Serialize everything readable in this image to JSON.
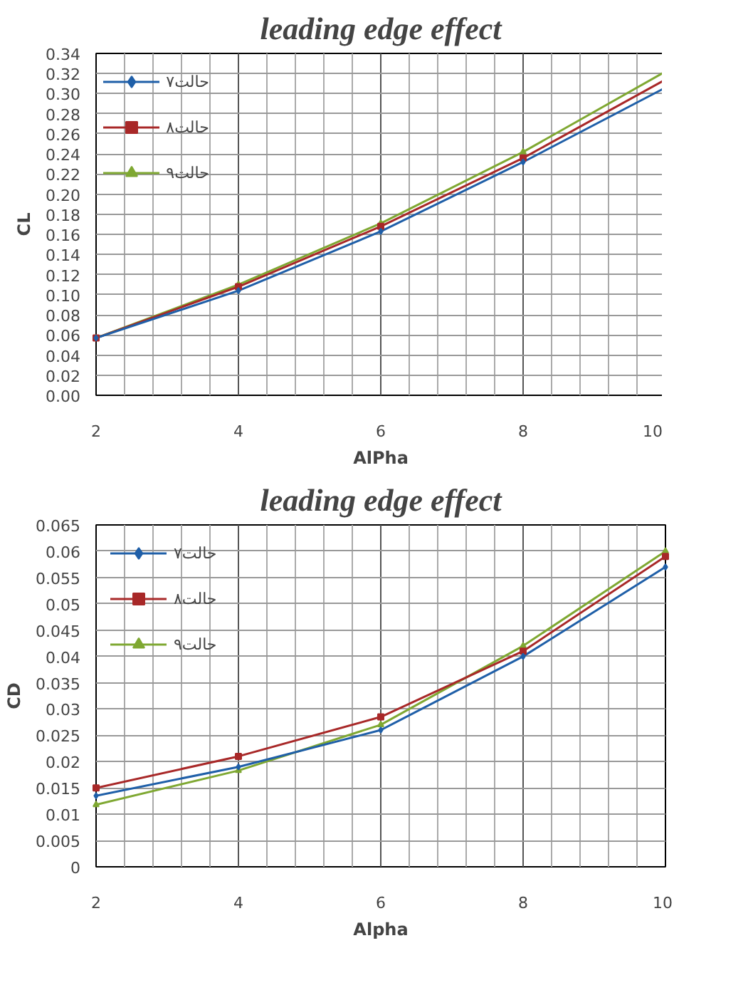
{
  "chart_data": [
    {
      "type": "line",
      "title": "leading edge effect",
      "xlabel": "AlPha",
      "ylabel": "CL",
      "x": [
        2,
        4,
        6,
        8,
        10
      ],
      "series": [
        {
          "name": "حالت۷",
          "color": "#1f5fa8",
          "marker": "diamond",
          "values": [
            0.057,
            0.104,
            0.163,
            0.232,
            0.306
          ]
        },
        {
          "name": "حالت۸",
          "color": "#a82828",
          "marker": "square",
          "values": [
            0.057,
            0.108,
            0.168,
            0.236,
            0.314
          ]
        },
        {
          "name": "حالت۹",
          "color": "#7fa832",
          "marker": "triangle",
          "values": [
            0.057,
            0.11,
            0.171,
            0.242,
            0.322
          ]
        }
      ],
      "xlim": [
        2,
        10
      ],
      "xticks": [
        2,
        4,
        6,
        8,
        10
      ],
      "ylim": [
        0,
        0.34
      ],
      "yticks": [
        {
          "value": 0,
          "label": "0.00"
        },
        {
          "value": 0.02,
          "label": "0.02"
        },
        {
          "value": 0.04,
          "label": "0.04"
        },
        {
          "value": 0.06,
          "label": "0.06"
        },
        {
          "value": 0.08,
          "label": "0.08"
        },
        {
          "value": 0.1,
          "label": "0.10"
        },
        {
          "value": 0.12,
          "label": "0.12"
        },
        {
          "value": 0.14,
          "label": "0.14"
        },
        {
          "value": 0.16,
          "label": "0.16"
        },
        {
          "value": 0.18,
          "label": "0.18"
        },
        {
          "value": 0.2,
          "label": "0.20"
        },
        {
          "value": 0.22,
          "label": "0.22"
        },
        {
          "value": 0.24,
          "label": "0.24"
        },
        {
          "value": 0.26,
          "label": "0.26"
        },
        {
          "value": 0.28,
          "label": "0.28"
        },
        {
          "value": 0.3,
          "label": "0.30"
        },
        {
          "value": 0.32,
          "label": "0.32"
        },
        {
          "value": 0.34,
          "label": "0.34"
        }
      ],
      "grid": true,
      "legend": "top left",
      "line_style": "solid"
    },
    {
      "type": "line",
      "title": "leading edge effect",
      "xlabel": "Alpha",
      "ylabel": "CD",
      "x": [
        2,
        4,
        6,
        8,
        10
      ],
      "series": [
        {
          "name": "حالت۷",
          "color": "#1f5fa8",
          "marker": "diamond",
          "values": [
            0.0135,
            0.019,
            0.026,
            0.04,
            0.057
          ]
        },
        {
          "name": "حالت۸",
          "color": "#a82828",
          "marker": "square",
          "values": [
            0.015,
            0.021,
            0.0285,
            0.041,
            0.059
          ]
        },
        {
          "name": "حالت۹",
          "color": "#7fa832",
          "marker": "triangle",
          "values": [
            0.0118,
            0.0183,
            0.027,
            0.042,
            0.06
          ]
        }
      ],
      "xlim": [
        2,
        10
      ],
      "xticks": [
        2,
        4,
        6,
        8,
        10
      ],
      "ylim": [
        0,
        0.065
      ],
      "yticks": [
        0,
        0.005,
        0.01,
        0.015,
        0.02,
        0.025,
        0.03,
        0.035,
        0.04,
        0.045,
        0.05,
        0.055,
        0.06,
        0.065
      ],
      "grid": true,
      "legend": "top left",
      "line_style": "solid"
    }
  ]
}
